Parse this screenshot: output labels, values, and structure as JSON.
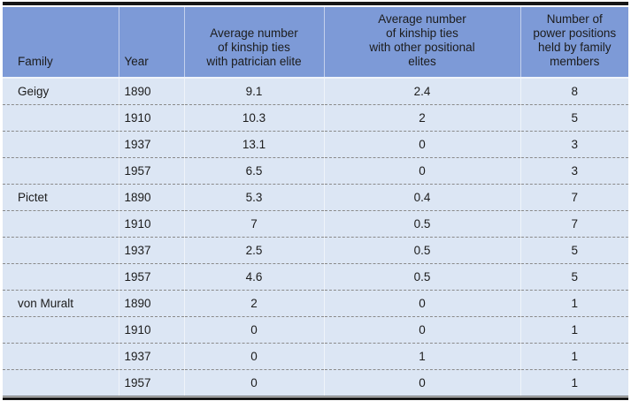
{
  "chart_data": {
    "type": "table",
    "columns": [
      "Family",
      "Year",
      "Average number\nof kinship ties\nwith patrician elite",
      "Average number\nof kinship ties\nwith other positional\nelites",
      "Number of\npower positions\nheld by family\nmembers"
    ],
    "rows": [
      [
        "Geigy",
        "1890",
        "9.1",
        "2.4",
        "8"
      ],
      [
        "",
        "1910",
        "10.3",
        "2",
        "5"
      ],
      [
        "",
        "1937",
        "13.1",
        "0",
        "3"
      ],
      [
        "",
        "1957",
        "6.5",
        "0",
        "3"
      ],
      [
        "Pictet",
        "1890",
        "5.3",
        "0.4",
        "7"
      ],
      [
        "",
        "1910",
        "7",
        "0.5",
        "7"
      ],
      [
        "",
        "1937",
        "2.5",
        "0.5",
        "5"
      ],
      [
        "",
        "1957",
        "4.6",
        "0.5",
        "5"
      ],
      [
        "von Muralt",
        "1890",
        "2",
        "0",
        "1"
      ],
      [
        "",
        "1910",
        "0",
        "0",
        "1"
      ],
      [
        "",
        "1937",
        "0",
        "1",
        "1"
      ],
      [
        "",
        "1957",
        "0",
        "0",
        "1"
      ]
    ]
  },
  "colors": {
    "header_bg": "#7d9ad7",
    "row_bg": "#dce6f4",
    "rule": "#151515",
    "row_divider": "#8a8a8a",
    "text": "#1c1c1c"
  }
}
